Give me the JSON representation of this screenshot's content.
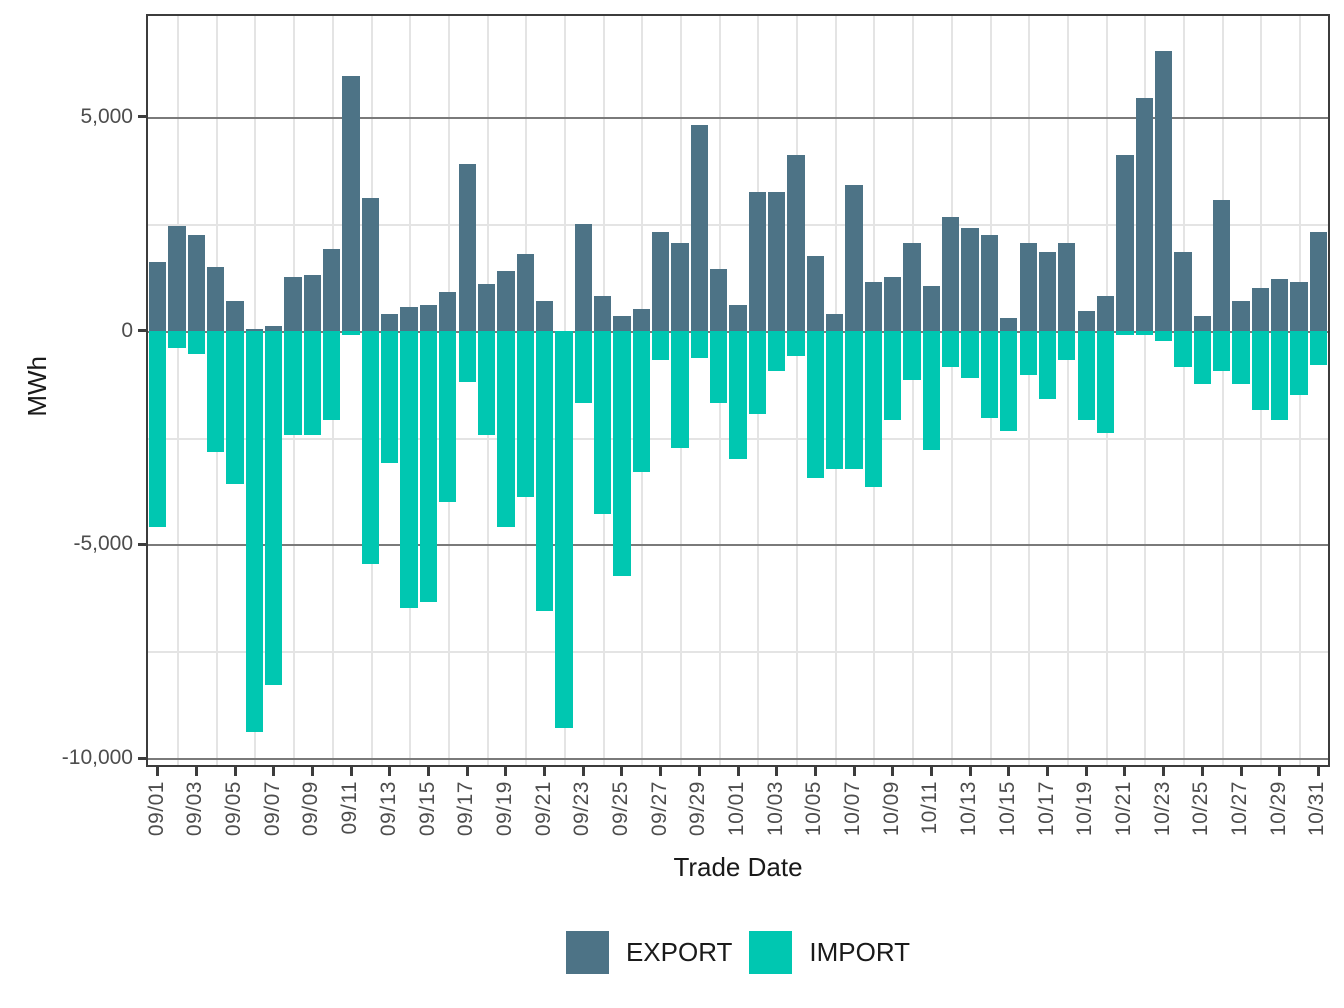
{
  "figure": {
    "y_axis": {
      "title": "MWh",
      "tick_labels": [
        "5,000",
        "0",
        "-5,000",
        "-10,000"
      ],
      "tick_values": [
        5000,
        0,
        -5000,
        -10000
      ]
    },
    "x_axis": {
      "title": "Trade Date"
    },
    "legend": {
      "items": [
        {
          "label": "EXPORT",
          "color": "#4D7386"
        },
        {
          "label": "IMPORT",
          "color": "#00C7B1"
        }
      ]
    }
  },
  "chart_data": {
    "type": "bar",
    "title": "",
    "xlabel": "Trade Date",
    "ylabel": "MWh",
    "ylim": [
      -10160,
      7360
    ],
    "grid": {
      "major_color": "#7a7a7a",
      "minor_color": "#e4e4e4",
      "vertical_minor": true
    },
    "legend_position": "bottom",
    "y_major_ticks": [
      5000,
      0,
      -5000,
      -10000
    ],
    "y_minor_ticks": [
      2500,
      -2500,
      -7500
    ],
    "x_tick_labels": [
      "09/01",
      "09/03",
      "09/05",
      "09/07",
      "09/09",
      "09/11",
      "09/13",
      "09/15",
      "09/17",
      "09/19",
      "09/21",
      "09/23",
      "09/25",
      "09/27",
      "09/29",
      "10/01",
      "10/03",
      "10/05",
      "10/07",
      "10/09",
      "10/11",
      "10/13",
      "10/15",
      "10/17",
      "10/19",
      "10/21",
      "10/23",
      "10/25",
      "10/27",
      "10/29",
      "10/31"
    ],
    "categories": [
      "09/01",
      "09/02",
      "09/03",
      "09/04",
      "09/05",
      "09/06",
      "09/07",
      "09/08",
      "09/09",
      "09/10",
      "09/11",
      "09/12",
      "09/13",
      "09/14",
      "09/15",
      "09/16",
      "09/17",
      "09/18",
      "09/19",
      "09/20",
      "09/21",
      "09/22",
      "09/23",
      "09/24",
      "09/25",
      "09/26",
      "09/27",
      "09/28",
      "09/29",
      "09/30",
      "10/01",
      "10/02",
      "10/03",
      "10/04",
      "10/05",
      "10/06",
      "10/07",
      "10/08",
      "10/09",
      "10/10",
      "10/11",
      "10/12",
      "10/13",
      "10/14",
      "10/15",
      "10/16",
      "10/17",
      "10/18",
      "10/19",
      "10/20",
      "10/21",
      "10/22",
      "10/23",
      "10/24",
      "10/25",
      "10/26",
      "10/27",
      "10/28",
      "10/29",
      "10/30",
      "10/31"
    ],
    "series": [
      {
        "name": "EXPORT",
        "color": "#4D7386",
        "values": [
          1600,
          2450,
          2250,
          1500,
          700,
          50,
          100,
          1250,
          1300,
          1900,
          5950,
          3100,
          400,
          550,
          600,
          900,
          3900,
          1100,
          1400,
          1800,
          700,
          0,
          2500,
          800,
          350,
          500,
          2300,
          2050,
          4800,
          1450,
          600,
          3250,
          3250,
          4100,
          1750,
          400,
          3400,
          1150,
          1250,
          2050,
          1050,
          2650,
          2400,
          2250,
          300,
          2050,
          1850,
          2050,
          450,
          800,
          4100,
          5450,
          6550,
          1850,
          350,
          3050,
          700,
          1000,
          1200,
          1150,
          2300
        ]
      },
      {
        "name": "IMPORT",
        "color": "#00C7B1",
        "values": [
          -4600,
          -400,
          -550,
          -2850,
          -3600,
          -9400,
          -8300,
          -2450,
          -2450,
          -2100,
          -100,
          -5450,
          -3100,
          -6500,
          -6350,
          -4000,
          -1200,
          -2450,
          -4600,
          -3900,
          -6550,
          -9300,
          -1700,
          -4300,
          -5750,
          -3300,
          -700,
          -2750,
          -650,
          -1700,
          -3000,
          -1950,
          -950,
          -600,
          -3450,
          -3250,
          -3250,
          -3650,
          -2100,
          -1150,
          -2800,
          -850,
          -1100,
          -2050,
          -2350,
          -1050,
          -1600,
          -700,
          -2100,
          -2400,
          -100,
          -100,
          -250,
          -850,
          -1250,
          -950,
          -1250,
          -1850,
          -2100,
          -1500,
          -800
        ]
      }
    ]
  }
}
